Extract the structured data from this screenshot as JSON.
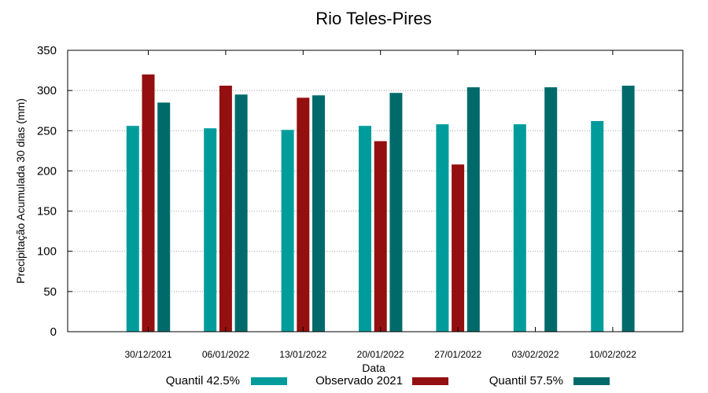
{
  "chart_data": {
    "type": "bar",
    "title": "Rio Teles-Pires",
    "xlabel": "Data",
    "ylabel": "Precipitação Acumulada 30 dias (mm)",
    "ylim": [
      0,
      350
    ],
    "yticks": [
      0,
      50,
      100,
      150,
      200,
      250,
      300,
      350
    ],
    "grid": true,
    "legend_position": "bottom",
    "categories": [
      "30/12/2021",
      "06/01/2022",
      "13/01/2022",
      "20/01/2022",
      "27/01/2022",
      "03/02/2022",
      "10/02/2022"
    ],
    "series": [
      {
        "name": "Quantil 42.5%",
        "color": "#009c9c",
        "values": [
          256,
          253,
          251,
          256,
          258,
          258,
          262
        ]
      },
      {
        "name": "Observado 2021",
        "color": "#941010",
        "values": [
          320,
          306,
          291,
          237,
          208,
          null,
          null
        ]
      },
      {
        "name": "Quantil 57.5%",
        "color": "#006a6a",
        "values": [
          285,
          295,
          294,
          297,
          304,
          304,
          306
        ]
      }
    ]
  }
}
